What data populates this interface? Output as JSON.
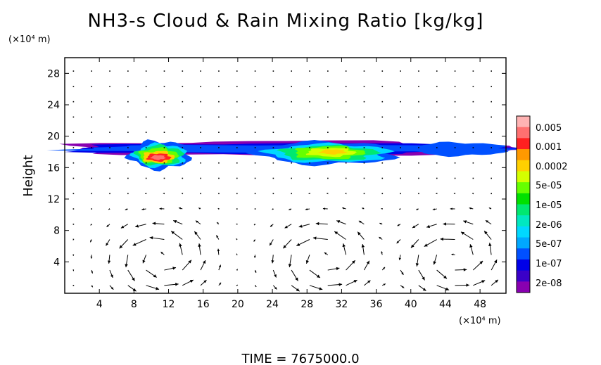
{
  "chart_data": {
    "type": "heatmap",
    "title": "NH3-s Cloud & Rain Mixing Ratio [kg/kg]",
    "xlabel": "",
    "ylabel": "Height",
    "x_unit": "(×10⁴ m)",
    "y_unit": "(×10⁴ m)",
    "xlim": [
      0,
      51
    ],
    "ylim": [
      0,
      30
    ],
    "x_ticks": [
      4,
      8,
      12,
      16,
      20,
      24,
      28,
      32,
      36,
      40,
      44,
      48
    ],
    "y_ticks": [
      4,
      8,
      12,
      16,
      20,
      24,
      28
    ],
    "colorbar": {
      "labels": [
        "0.005",
        "0.001",
        "0.0002",
        "5e-05",
        "1e-05",
        "2e-06",
        "5e-07",
        "1e-07",
        "2e-08"
      ],
      "colors": [
        "#ffb3b3",
        "#ff7070",
        "#ff2020",
        "#ff9900",
        "#ffd000",
        "#d4ff00",
        "#66ff00",
        "#00e000",
        "#00e870",
        "#00e8c0",
        "#00d8ff",
        "#00a8ff",
        "#0050ff",
        "#0000e8",
        "#3a00c8",
        "#8800b0"
      ]
    },
    "cloud_regions": [
      {
        "x_range": [
          0.5,
          52
        ],
        "z_range": [
          17.4,
          19.6
        ],
        "level": "1e-07"
      },
      {
        "x_range": [
          7.5,
          14.5
        ],
        "z_range": [
          15.8,
          19.5
        ],
        "level": "1e-05"
      },
      {
        "x_range": [
          9,
          12.5
        ],
        "z_range": [
          16.3,
          18.2
        ],
        "level": "0.001"
      },
      {
        "x_range": [
          23,
          38
        ],
        "z_range": [
          16.5,
          19.2
        ],
        "level": "1e-05"
      },
      {
        "x_range": [
          27,
          34
        ],
        "z_range": [
          17.3,
          18.8
        ],
        "level": "5e-05"
      }
    ],
    "vector_field": {
      "description": "wind arrows",
      "circulation_cells_x": [
        11,
        30,
        45
      ],
      "cell_vertical_range": [
        0,
        9
      ]
    },
    "footer": "TIME = 7675000.0"
  }
}
